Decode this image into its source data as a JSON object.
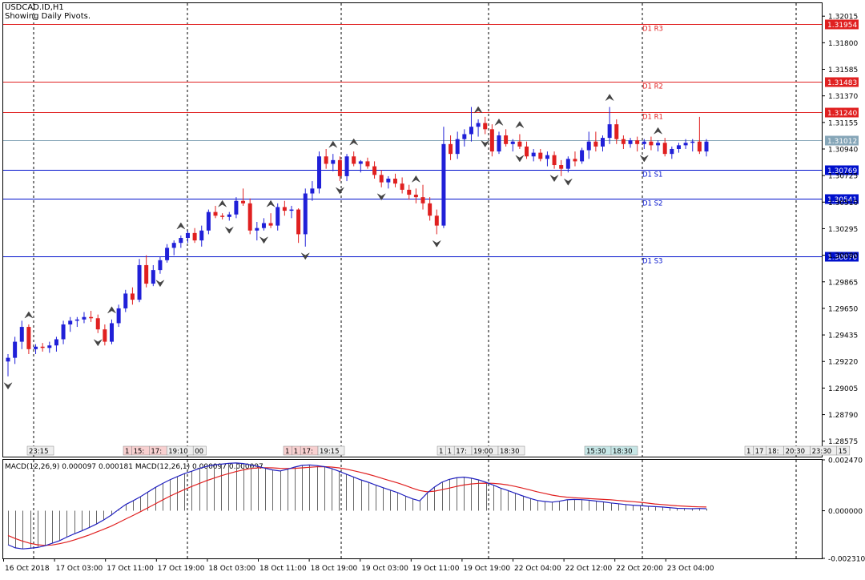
{
  "header": {
    "symbol": "USDCAD.ID,H1",
    "subtitle": "Showing Daily Pivots."
  },
  "colors": {
    "bull": "#2020d8",
    "bear": "#e02020",
    "resistance": "#e02020",
    "support": "#0010cc",
    "ask_line": "#86a6b8",
    "macd_line": "#2020c0",
    "signal_line": "#e02020",
    "histogram": "#666666"
  },
  "chart_data": [
    {
      "type": "candlestick",
      "title": "USDCAD.ID,H1",
      "subtitle": "Showing Daily Pivots.",
      "ylim": [
        1.2845,
        1.3212
      ],
      "y_ticks": [
        "1.32015",
        "1.31800",
        "1.31585",
        "1.31370",
        "1.31155",
        "1.30940",
        "1.30725",
        "1.30510",
        "1.30295",
        "1.30080",
        "1.29865",
        "1.29650",
        "1.29435",
        "1.29220",
        "1.29005",
        "1.28790",
        "1.28575"
      ],
      "x_labels": [
        "16 Oct 2018",
        "17 Oct 03:00",
        "17 Oct 11:00",
        "17 Oct 19:00",
        "18 Oct 03:00",
        "18 Oct 11:00",
        "18 Oct 19:00",
        "19 Oct 03:00",
        "19 Oct 11:00",
        "19 Oct 19:00",
        "22 Oct 04:00",
        "22 Oct 12:00",
        "22 Oct 20:00",
        "23 Oct 04:00"
      ],
      "session_separators": 5,
      "current_price": "1.31012",
      "pivot_levels": [
        {
          "label": "D1 R3",
          "value": "1.31954",
          "kind": "resistance"
        },
        {
          "label": "D1 R2",
          "value": "1.31483",
          "kind": "resistance"
        },
        {
          "label": "D1 R1",
          "value": "1.31240",
          "kind": "resistance"
        },
        {
          "label": "D1 S1",
          "value": "1.30769",
          "kind": "support"
        },
        {
          "label": "D1 S2",
          "value": "1.30541",
          "kind": "support"
        },
        {
          "label": "D1 S3",
          "value": "1.30070",
          "kind": "support"
        }
      ],
      "time_tags": [
        [
          "23:15"
        ],
        [
          "1",
          "15:",
          "17:",
          "19:10",
          "00"
        ],
        [
          "1",
          "1",
          "17:",
          "19:15"
        ],
        [
          "1",
          "1",
          "17:",
          "19:00",
          "18:30"
        ],
        [
          "15:30",
          "18:30"
        ],
        [
          "1",
          "17",
          "18:",
          "20:30",
          "23:30",
          "15"
        ]
      ],
      "candles_ohlc": [
        [
          1.2922,
          1.2928,
          1.291,
          1.2925
        ],
        [
          1.2925,
          1.2942,
          1.292,
          1.2938
        ],
        [
          1.2938,
          1.2955,
          1.2932,
          1.295
        ],
        [
          1.295,
          1.2952,
          1.2928,
          1.2932
        ],
        [
          1.2932,
          1.2936,
          1.2928,
          1.2934
        ],
        [
          1.2934,
          1.2937,
          1.293,
          1.2933
        ],
        [
          1.2933,
          1.2938,
          1.2929,
          1.2935
        ],
        [
          1.2935,
          1.2942,
          1.293,
          1.294
        ],
        [
          1.294,
          1.2955,
          1.2936,
          1.2952
        ],
        [
          1.2952,
          1.2958,
          1.2946,
          1.2955
        ],
        [
          1.2955,
          1.2958,
          1.295,
          1.2956
        ],
        [
          1.2956,
          1.2962,
          1.2953,
          1.2958
        ],
        [
          1.2958,
          1.2963,
          1.2954,
          1.2957
        ],
        [
          1.2957,
          1.296,
          1.2945,
          1.2948
        ],
        [
          1.2948,
          1.2952,
          1.2935,
          1.2938
        ],
        [
          1.2938,
          1.2956,
          1.2936,
          1.2953
        ],
        [
          1.2953,
          1.2968,
          1.295,
          1.2965
        ],
        [
          1.2965,
          1.298,
          1.2962,
          1.2977
        ],
        [
          1.2977,
          1.2982,
          1.2968,
          1.2972
        ],
        [
          1.2972,
          1.3005,
          1.297,
          1.3
        ],
        [
          1.3,
          1.3008,
          1.2982,
          1.2985
        ],
        [
          1.2985,
          1.3,
          1.2983,
          1.2996
        ],
        [
          1.2996,
          1.3007,
          1.2993,
          1.3004
        ],
        [
          1.3004,
          1.3017,
          1.3002,
          1.3014
        ],
        [
          1.3014,
          1.302,
          1.3008,
          1.3018
        ],
        [
          1.3018,
          1.3024,
          1.3014,
          1.3022
        ],
        [
          1.3022,
          1.3028,
          1.3018,
          1.3026
        ],
        [
          1.3026,
          1.303,
          1.3018,
          1.302
        ],
        [
          1.302,
          1.3032,
          1.3015,
          1.3028
        ],
        [
          1.3028,
          1.3045,
          1.3025,
          1.3043
        ],
        [
          1.3043,
          1.3048,
          1.3038,
          1.304
        ],
        [
          1.304,
          1.3042,
          1.3037,
          1.3039
        ],
        [
          1.3039,
          1.3043,
          1.3036,
          1.3041
        ],
        [
          1.3041,
          1.3055,
          1.3038,
          1.3052
        ],
        [
          1.3052,
          1.3062,
          1.3048,
          1.305
        ],
        [
          1.305,
          1.3054,
          1.3025,
          1.3028
        ],
        [
          1.3028,
          1.3035,
          1.302,
          1.303
        ],
        [
          1.303,
          1.3038,
          1.3028,
          1.3034
        ],
        [
          1.3034,
          1.3042,
          1.303,
          1.3032
        ],
        [
          1.3032,
          1.305,
          1.3028,
          1.3047
        ],
        [
          1.3047,
          1.3052,
          1.304,
          1.3044
        ],
        [
          1.3044,
          1.3048,
          1.3038,
          1.3045
        ],
        [
          1.3045,
          1.3046,
          1.3018,
          1.3025
        ],
        [
          1.3025,
          1.3062,
          1.3015,
          1.3058
        ],
        [
          1.3058,
          1.3068,
          1.3052,
          1.3062
        ],
        [
          1.3062,
          1.3092,
          1.3058,
          1.3088
        ],
        [
          1.3088,
          1.3094,
          1.3078,
          1.3082
        ],
        [
          1.3082,
          1.309,
          1.3076,
          1.3085
        ],
        [
          1.3085,
          1.3088,
          1.3068,
          1.3072
        ],
        [
          1.3072,
          1.309,
          1.3068,
          1.3088
        ],
        [
          1.3088,
          1.3092,
          1.308,
          1.3082
        ],
        [
          1.3082,
          1.3085,
          1.3075,
          1.3084
        ],
        [
          1.3084,
          1.3087,
          1.3078,
          1.308
        ],
        [
          1.308,
          1.3084,
          1.307,
          1.3073
        ],
        [
          1.3073,
          1.3077,
          1.3063,
          1.3067
        ],
        [
          1.3067,
          1.3072,
          1.3062,
          1.307
        ],
        [
          1.307,
          1.3074,
          1.3063,
          1.3066
        ],
        [
          1.3066,
          1.3071,
          1.3058,
          1.3061
        ],
        [
          1.3061,
          1.3065,
          1.3053,
          1.3057
        ],
        [
          1.3057,
          1.3062,
          1.305,
          1.3055
        ],
        [
          1.3055,
          1.3065,
          1.3045,
          1.305
        ],
        [
          1.305,
          1.3055,
          1.3036,
          1.304
        ],
        [
          1.304,
          1.3045,
          1.3025,
          1.3032
        ],
        [
          1.3032,
          1.3112,
          1.303,
          1.3098
        ],
        [
          1.3098,
          1.3105,
          1.3085,
          1.309
        ],
        [
          1.309,
          1.3108,
          1.3086,
          1.3102
        ],
        [
          1.3102,
          1.311,
          1.3096,
          1.3106
        ],
        [
          1.3106,
          1.3128,
          1.31,
          1.3112
        ],
        [
          1.3112,
          1.3118,
          1.3104,
          1.3115
        ],
        [
          1.3115,
          1.312,
          1.3106,
          1.311
        ],
        [
          1.311,
          1.3114,
          1.3088,
          1.3092
        ],
        [
          1.3092,
          1.3108,
          1.309,
          1.3105
        ],
        [
          1.3105,
          1.311,
          1.3096,
          1.3098
        ],
        [
          1.3098,
          1.3102,
          1.3092,
          1.31
        ],
        [
          1.31,
          1.3106,
          1.3094,
          1.3096
        ],
        [
          1.3096,
          1.31,
          1.3086,
          1.3088
        ],
        [
          1.3088,
          1.3094,
          1.3084,
          1.3091
        ],
        [
          1.3091,
          1.3094,
          1.3084,
          1.3086
        ],
        [
          1.3086,
          1.3092,
          1.308,
          1.3089
        ],
        [
          1.3089,
          1.3092,
          1.3078,
          1.3081
        ],
        [
          1.3081,
          1.3085,
          1.3072,
          1.3078
        ],
        [
          1.3078,
          1.3088,
          1.3075,
          1.3086
        ],
        [
          1.3086,
          1.3092,
          1.308,
          1.3084
        ],
        [
          1.3084,
          1.3095,
          1.3082,
          1.3093
        ],
        [
          1.3093,
          1.3108,
          1.3086,
          1.31
        ],
        [
          1.31,
          1.3108,
          1.3092,
          1.3096
        ],
        [
          1.3096,
          1.3105,
          1.3092,
          1.3103
        ],
        [
          1.3103,
          1.3128,
          1.3098,
          1.3114
        ],
        [
          1.3114,
          1.3118,
          1.3098,
          1.3102
        ],
        [
          1.3102,
          1.3105,
          1.3094,
          1.3098
        ],
        [
          1.3098,
          1.3103,
          1.3095,
          1.3101
        ],
        [
          1.3101,
          1.3104,
          1.3092,
          1.3098
        ],
        [
          1.3098,
          1.3102,
          1.3094,
          1.31
        ],
        [
          1.31,
          1.3104,
          1.3093,
          1.3097
        ],
        [
          1.3097,
          1.3101,
          1.3092,
          1.3099
        ],
        [
          1.3099,
          1.3103,
          1.3088,
          1.309
        ],
        [
          1.309,
          1.3096,
          1.3086,
          1.3094
        ],
        [
          1.3094,
          1.3099,
          1.3091,
          1.3097
        ],
        [
          1.3097,
          1.3102,
          1.3094,
          1.3099
        ],
        [
          1.3099,
          1.3102,
          1.3092,
          1.31
        ],
        [
          1.31,
          1.312,
          1.309,
          1.3092
        ],
        [
          1.3092,
          1.3102,
          1.3088,
          1.31
        ]
      ],
      "fractal_up_idx": [
        3,
        15,
        25,
        31,
        38,
        47,
        50,
        59,
        68,
        71,
        74,
        87,
        94
      ],
      "fractal_down_idx": [
        0,
        13,
        22,
        32,
        37,
        43,
        48,
        54,
        62,
        69,
        74,
        79,
        81,
        92
      ]
    },
    {
      "type": "line",
      "title": "MACD(12,26,9) 0.000097 0.000181 MACD(12,26,1) 0.000097 0.000097",
      "ylim": [
        -0.00231,
        0.00247
      ],
      "y_ticks": [
        "0.002470",
        "0.000000",
        "-0.002310"
      ],
      "series": [
        {
          "name": "MACD",
          "values": [
            -0.00165,
            -0.0018,
            -0.00185,
            -0.00182,
            -0.00178,
            -0.0017,
            -0.00158,
            -0.00145,
            -0.00128,
            -0.00112,
            -0.00098,
            -0.00082,
            -0.00065,
            -0.00045,
            -0.00022,
            5e-05,
            0.0003,
            0.00048,
            0.00068,
            0.0009,
            0.00112,
            0.00132,
            0.0015,
            0.00165,
            0.0018,
            0.00192,
            0.00205,
            0.00215,
            0.00222,
            0.00226,
            0.0023,
            0.00232,
            0.00229,
            0.00222,
            0.00215,
            0.00206,
            0.00198,
            0.00193,
            0.00201,
            0.00212,
            0.0022,
            0.00222,
            0.00219,
            0.00214,
            0.00205,
            0.00192,
            0.00178,
            0.00164,
            0.0015,
            0.00138,
            0.00125,
            0.00112,
            0.001,
            0.00088,
            0.00072,
            0.00058,
            0.00048,
            0.00085,
            0.00115,
            0.00138,
            0.00152,
            0.0016,
            0.00163,
            0.00158,
            0.0015,
            0.00138,
            0.00125,
            0.0011,
            0.00098,
            0.00085,
            0.00072,
            0.0006,
            0.0005,
            0.00045,
            0.00042,
            0.00046,
            0.00053,
            0.00055,
            0.00054,
            0.00051,
            0.00047,
            0.00043,
            0.00038,
            0.00034,
            0.0003,
            0.00027,
            0.00025,
            0.00022,
            0.0002,
            0.00018,
            0.00015,
            0.00012,
            0.00011,
            0.0001,
            0.00011,
            0.0001
          ]
        },
        {
          "name": "Signal",
          "values": [
            -0.0012,
            -0.00135,
            -0.00148,
            -0.00158,
            -0.00165,
            -0.00168,
            -0.00166,
            -0.0016,
            -0.00152,
            -0.00142,
            -0.0013,
            -0.00118,
            -0.00104,
            -0.0009,
            -0.00075,
            -0.00058,
            -0.0004,
            -0.00023,
            -5e-05,
            0.00014,
            0.00033,
            0.00052,
            0.0007,
            0.00087,
            0.00103,
            0.00118,
            0.00132,
            0.00146,
            0.00158,
            0.0017,
            0.0018,
            0.0019,
            0.00198,
            0.00205,
            0.00208,
            0.00209,
            0.00208,
            0.00206,
            0.00205,
            0.00206,
            0.00208,
            0.00211,
            0.00213,
            0.00214,
            0.00212,
            0.00208,
            0.00202,
            0.00194,
            0.00186,
            0.00177,
            0.00167,
            0.00156,
            0.00145,
            0.00135,
            0.00123,
            0.0011,
            0.00098,
            0.00092,
            0.00095,
            0.00102,
            0.0011,
            0.00118,
            0.00125,
            0.0013,
            0.00133,
            0.00134,
            0.00133,
            0.0013,
            0.00125,
            0.00118,
            0.0011,
            0.00101,
            0.00092,
            0.00084,
            0.00076,
            0.0007,
            0.00066,
            0.00063,
            0.00061,
            0.00059,
            0.00057,
            0.00055,
            0.00053,
            0.0005,
            0.00047,
            0.00044,
            0.00041,
            0.00037,
            0.00033,
            0.0003,
            0.00027,
            0.00024,
            0.00022,
            0.0002,
            0.00019,
            0.00018
          ]
        }
      ]
    }
  ]
}
